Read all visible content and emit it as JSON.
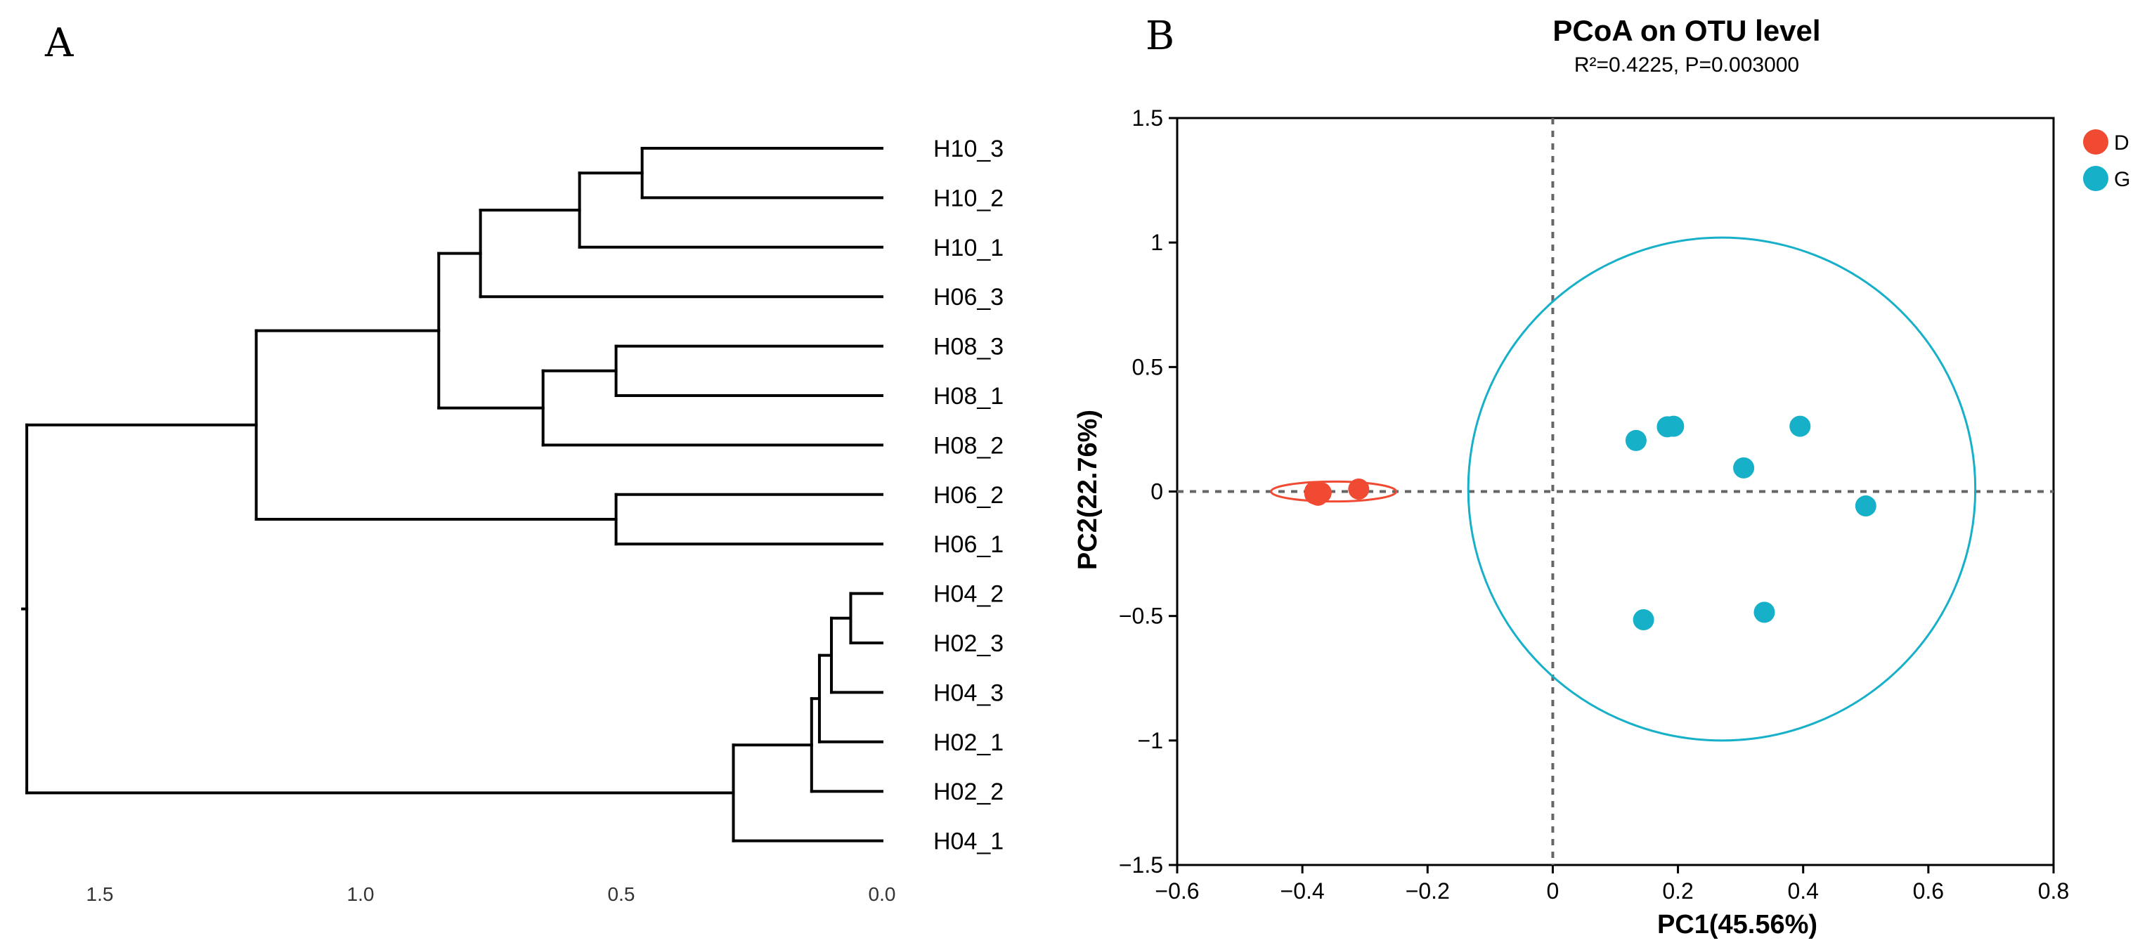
{
  "panels": {
    "a_label": "A",
    "b_label": "B"
  },
  "dendrogram": {
    "leaves": [
      "H10_3",
      "H10_2",
      "H10_1",
      "H06_3",
      "H08_3",
      "H08_1",
      "H08_2",
      "H06_2",
      "H06_1",
      "H04_2",
      "H02_3",
      "H04_3",
      "H02_1",
      "H02_2",
      "H04_1"
    ],
    "axis_ticks": [
      1.5,
      1.0,
      0.5,
      0.0
    ],
    "axis_tick_labels": [
      "1.5",
      "1.0",
      "0.5",
      "0.0"
    ],
    "merges": [
      {
        "a": "H10_3",
        "b": "H10_2",
        "h": 0.46
      },
      {
        "a": "m0",
        "b": "H10_1",
        "h": 0.58
      },
      {
        "a": "m1",
        "b": "H06_3",
        "h": 0.77
      },
      {
        "a": "H08_3",
        "b": "H08_1",
        "h": 0.51
      },
      {
        "a": "m3",
        "b": "H08_2",
        "h": 0.65
      },
      {
        "a": "m2",
        "b": "m4",
        "h": 0.85
      },
      {
        "a": "H06_2",
        "b": "H06_1",
        "h": 0.51
      },
      {
        "a": "m5",
        "b": "m6",
        "h": 1.2
      },
      {
        "a": "H04_2",
        "b": "H02_3",
        "h": 0.06
      },
      {
        "a": "m8",
        "b": "H04_3",
        "h": 0.097
      },
      {
        "a": "m9",
        "b": "H02_1",
        "h": 0.12
      },
      {
        "a": "m10",
        "b": "H02_2",
        "h": 0.135
      },
      {
        "a": "m11",
        "b": "H04_1",
        "h": 0.285
      },
      {
        "a": "m7",
        "b": "m12",
        "h": 1.64
      }
    ]
  },
  "chart_data": {
    "type": "scatter",
    "title": "PCoA on OTU level",
    "subtitle": "R²=0.4225, P=0.003000",
    "xlabel": "PC1(45.56%)",
    "ylabel": "PC2(22.76%)",
    "xlim": [
      -0.6,
      0.8
    ],
    "ylim": [
      -1.5,
      1.5
    ],
    "x_ticks": [
      -0.6,
      -0.4,
      -0.2,
      0,
      0.2,
      0.4,
      0.6,
      0.8
    ],
    "x_tick_labels": [
      "−0.6",
      "−0.4",
      "−0.2",
      "0",
      "0.2",
      "0.4",
      "0.6",
      "0.8"
    ],
    "y_ticks": [
      -1.5,
      -1,
      -0.5,
      0,
      0.5,
      1,
      1.5
    ],
    "y_tick_labels": [
      "−1.5",
      "−1",
      "−0.5",
      "0",
      "0.5",
      "1",
      "1.5"
    ],
    "legend_position": "top-right",
    "series": [
      {
        "name": "D",
        "color": "#f04a32",
        "points": [
          [
            -0.38,
            0.0
          ],
          [
            -0.375,
            -0.015
          ],
          [
            -0.38,
            -0.01
          ],
          [
            -0.37,
            -0.005
          ],
          [
            -0.31,
            0.01
          ]
        ],
        "ellipse": {
          "cx": -0.35,
          "cy": 0.0,
          "rx": 0.1,
          "ry": 0.04
        }
      },
      {
        "name": "G",
        "color": "#16b0c9",
        "points": [
          [
            0.133,
            0.205
          ],
          [
            0.183,
            0.26
          ],
          [
            0.193,
            0.262
          ],
          [
            0.395,
            0.262
          ],
          [
            0.305,
            0.095
          ],
          [
            0.5,
            -0.058
          ],
          [
            0.338,
            -0.485
          ],
          [
            0.145,
            -0.515
          ]
        ],
        "ellipse": {
          "cx": 0.27,
          "cy": 0.01,
          "rx": 0.405,
          "ry": 1.01
        }
      }
    ]
  }
}
